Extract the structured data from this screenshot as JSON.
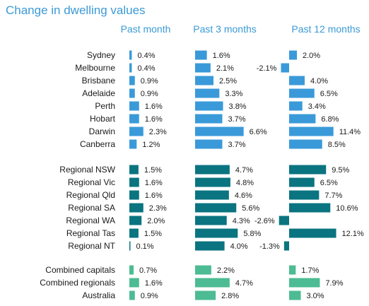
{
  "chart_data": {
    "type": "bar",
    "title": "Change in dwelling values",
    "groups": [
      {
        "name": "",
        "categories": [
          "Sydney",
          "Melbourne",
          "Brisbane",
          "Adelaide",
          "Perth",
          "Hobart",
          "Darwin",
          "Canberra"
        ]
      },
      {
        "name": "",
        "categories": [
          "Regional NSW",
          "Regional Vic",
          "Regional Qld",
          "Regional SA",
          "Regional WA",
          "Regional Tas",
          "Regional NT"
        ]
      },
      {
        "name": "",
        "categories": [
          "Combined capitals",
          "Combined regionals",
          "Australia"
        ]
      }
    ],
    "categories": [
      "Sydney",
      "Melbourne",
      "Brisbane",
      "Adelaide",
      "Perth",
      "Hobart",
      "Darwin",
      "Canberra",
      "Regional NSW",
      "Regional Vic",
      "Regional Qld",
      "Regional SA",
      "Regional WA",
      "Regional Tas",
      "Regional NT",
      "Combined capitals",
      "Combined regionals",
      "Australia"
    ],
    "series": [
      {
        "name": "Past month",
        "values": [
          0.4,
          0.4,
          0.9,
          0.9,
          1.6,
          1.6,
          2.3,
          1.2,
          1.5,
          1.6,
          1.6,
          2.3,
          2.0,
          1.5,
          0.1,
          0.7,
          1.6,
          0.9
        ],
        "labels": [
          "0.4%",
          "0.4%",
          "0.9%",
          "0.9%",
          "1.6%",
          "1.6%",
          "2.3%",
          "1.2%",
          "1.5%",
          "1.6%",
          "1.6%",
          "2.3%",
          "2.0%",
          "1.5%",
          "0.1%",
          "0.7%",
          "1.6%",
          "0.9%"
        ]
      },
      {
        "name": "Past 3 months",
        "values": [
          1.6,
          2.1,
          2.5,
          3.3,
          3.8,
          3.7,
          6.6,
          3.7,
          4.7,
          4.8,
          4.6,
          5.6,
          4.3,
          5.8,
          4.0,
          2.2,
          4.7,
          2.8
        ],
        "labels": [
          "1.6%",
          "2.1%",
          "2.5%",
          "3.3%",
          "3.8%",
          "3.7%",
          "6.6%",
          "3.7%",
          "4.7%",
          "4.8%",
          "4.6%",
          "5.6%",
          "4.3%",
          "5.8%",
          "4.0%",
          "2.2%",
          "4.7%",
          "2.8%"
        ]
      },
      {
        "name": "Past 12 months",
        "values": [
          2.0,
          -2.1,
          4.0,
          6.5,
          3.4,
          6.8,
          11.4,
          8.5,
          9.5,
          6.5,
          7.7,
          10.6,
          -2.6,
          12.1,
          -1.3,
          1.7,
          7.9,
          3.0
        ],
        "labels": [
          "2.0%",
          "-2.1%",
          "4.0%",
          "6.5%",
          "3.4%",
          "6.8%",
          "11.4%",
          "8.5%",
          "9.5%",
          "6.5%",
          "7.7%",
          "10.6%",
          "-2.6%",
          "12.1%",
          "-1.3%",
          "1.7%",
          "7.9%",
          "3.0%"
        ]
      }
    ],
    "colors": {
      "capitals": "#3a9ad9",
      "regionals": "#0a7480",
      "combined": "#4dbb93",
      "title": "#3b9ad6"
    },
    "legend": "none",
    "grid": false
  }
}
